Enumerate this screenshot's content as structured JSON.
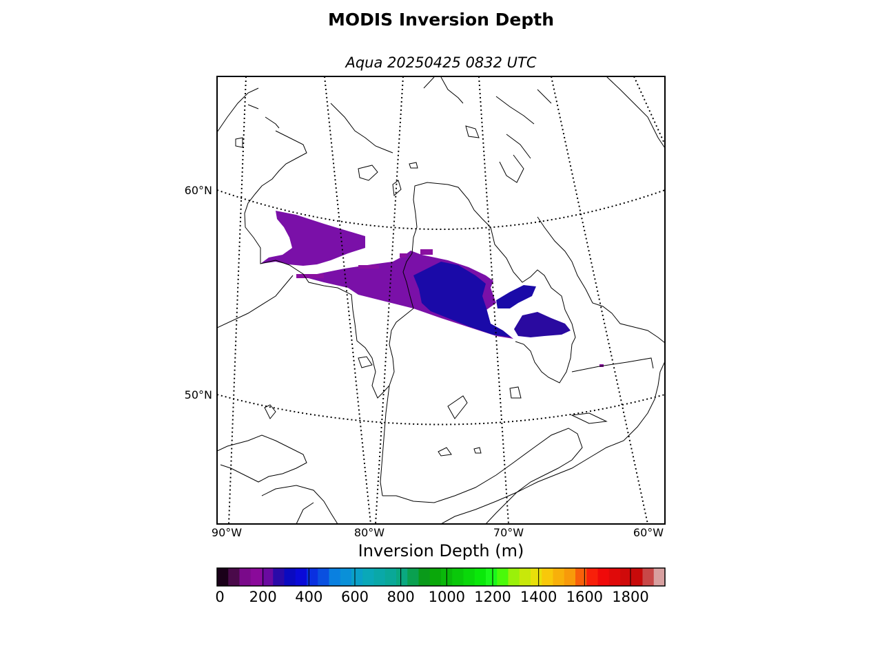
{
  "title": "MODIS Inversion Depth",
  "subtitle": "Aqua 20250425 0832 UTC",
  "map": {
    "lat_labels": [
      "60°N",
      "50°N"
    ],
    "lon_labels": [
      "90°W",
      "80°W",
      "70°W",
      "60°W"
    ]
  },
  "colorbar": {
    "label": "Inversion Depth (m)",
    "ticks": [
      "0",
      "200",
      "400",
      "600",
      "800",
      "1000",
      "1200",
      "1400",
      "1600",
      "1800"
    ],
    "range": [
      0,
      1950
    ],
    "colors": [
      "#1a0019",
      "#4a0a4a",
      "#7a0a8a",
      "#8a0a9a",
      "#6a0aa0",
      "#2a0aa8",
      "#0a0ac0",
      "#0a0ad8",
      "#0a30e0",
      "#0a50e0",
      "#0a80e0",
      "#0a90d8",
      "#0aa0c8",
      "#0aa8b8",
      "#0aa8a8",
      "#0aa898",
      "#0aa880",
      "#0aa050",
      "#0a9a1a",
      "#0aa80a",
      "#0ab80a",
      "#0ac80a",
      "#0ad80a",
      "#0ae80a",
      "#1af81a",
      "#4afa0a",
      "#9af00a",
      "#c8e80a",
      "#e8e00a",
      "#f8c80a",
      "#f8b00a",
      "#f89a0a",
      "#f8600a",
      "#f8200a",
      "#f00a0a",
      "#e00a0a",
      "#d00a0a",
      "#c80a0a",
      "#c84848",
      "#d8a0a0"
    ]
  },
  "swath": {
    "dominant_color": "#7a10a8",
    "core_color": "#1a0aa8"
  }
}
